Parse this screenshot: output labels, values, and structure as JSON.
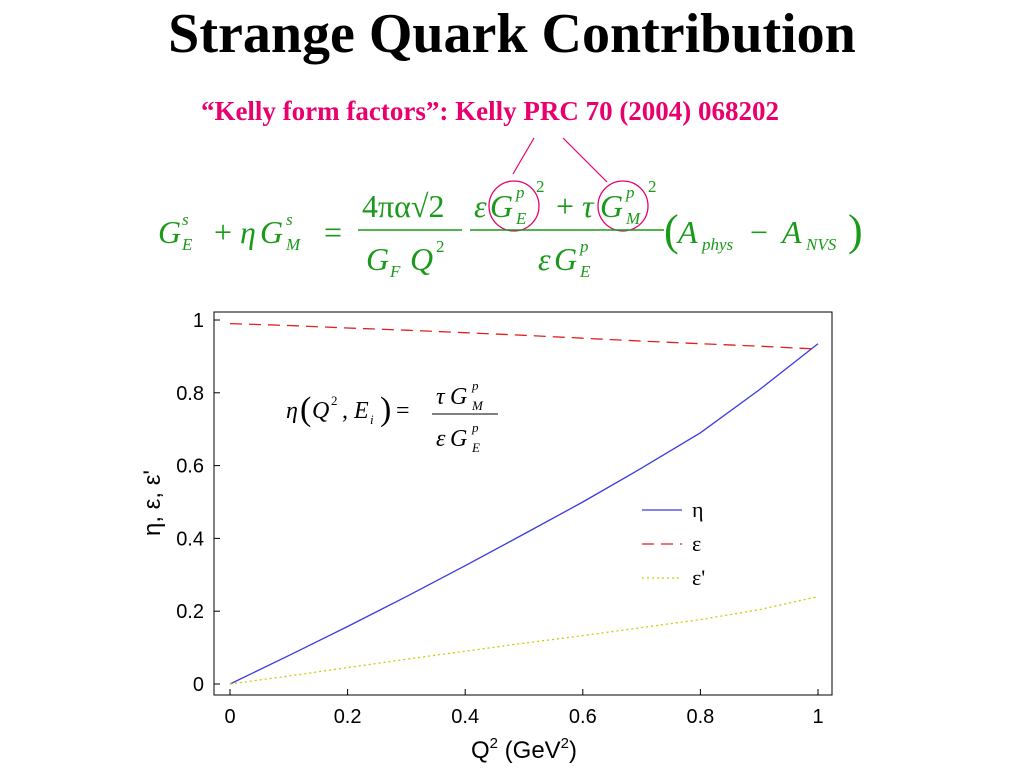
{
  "slide": {
    "title": "Strange Quark Contribution",
    "citation": "“Kelly form factors”: Kelly PRC 70 (2004) 068202"
  },
  "colors": {
    "formula": "#1a9a1a",
    "citation": "#e8006f",
    "eta_line": "#3a3ae0",
    "epsilon_line": "#e02020",
    "epsilon_prime_line": "#cccc00"
  },
  "formula": {
    "G": "G",
    "E": "E",
    "M": "M",
    "s": "s",
    "p": "p",
    "eta": "η",
    "eps": "ε",
    "tau": "τ",
    "plus": "+",
    "minus": "−",
    "equals": "=",
    "two": "2",
    "num_coeff": "4πα√2",
    "G_F": "G",
    "F": "F",
    "Q": "Q",
    "A": "A",
    "phys": "phys",
    "NVS": "NVS",
    "lparen": "(",
    "rparen": ")"
  },
  "inset_formula": {
    "eta": "η",
    "lparen": "(",
    "Q": "Q",
    "two": "2",
    "comma": ",",
    "E": "E",
    "i": "i",
    "rparen": ")",
    "equals": "=",
    "tau": "τ",
    "G": "G",
    "M": "M",
    "p": "p",
    "eps": "ε",
    "Esub": "E"
  },
  "chart_data": {
    "type": "line",
    "xlabel": {
      "main": "Q",
      "sup": "2",
      "unit_open": " (GeV",
      "unit_sup": "2",
      "unit_close": ")"
    },
    "ylabel": "η, ε, ε'",
    "xlim": [
      0,
      1
    ],
    "ylim": [
      0,
      1
    ],
    "x_ticks": [
      "0",
      "0.2",
      "0.4",
      "0.6",
      "0.8",
      "1"
    ],
    "y_ticks": [
      "0",
      "0.2",
      "0.4",
      "0.6",
      "0.8",
      "1"
    ],
    "grid": false,
    "legend_position": "right-middle",
    "x": [
      0,
      0.1,
      0.2,
      0.3,
      0.4,
      0.5,
      0.6,
      0.7,
      0.8,
      0.9,
      1.0
    ],
    "series": [
      {
        "name": "η",
        "style": "solid",
        "values": [
          0.0,
          0.078,
          0.158,
          0.24,
          0.325,
          0.412,
          0.5,
          0.593,
          0.69,
          0.808,
          0.935
        ]
      },
      {
        "name": "ε",
        "style": "dashed",
        "values": [
          0.99,
          0.985,
          0.978,
          0.972,
          0.965,
          0.958,
          0.95,
          0.942,
          0.935,
          0.928,
          0.92
        ]
      },
      {
        "name": "ε'",
        "style": "dotted",
        "values": [
          0.0,
          0.022,
          0.045,
          0.068,
          0.09,
          0.112,
          0.133,
          0.155,
          0.177,
          0.204,
          0.24
        ]
      }
    ]
  }
}
